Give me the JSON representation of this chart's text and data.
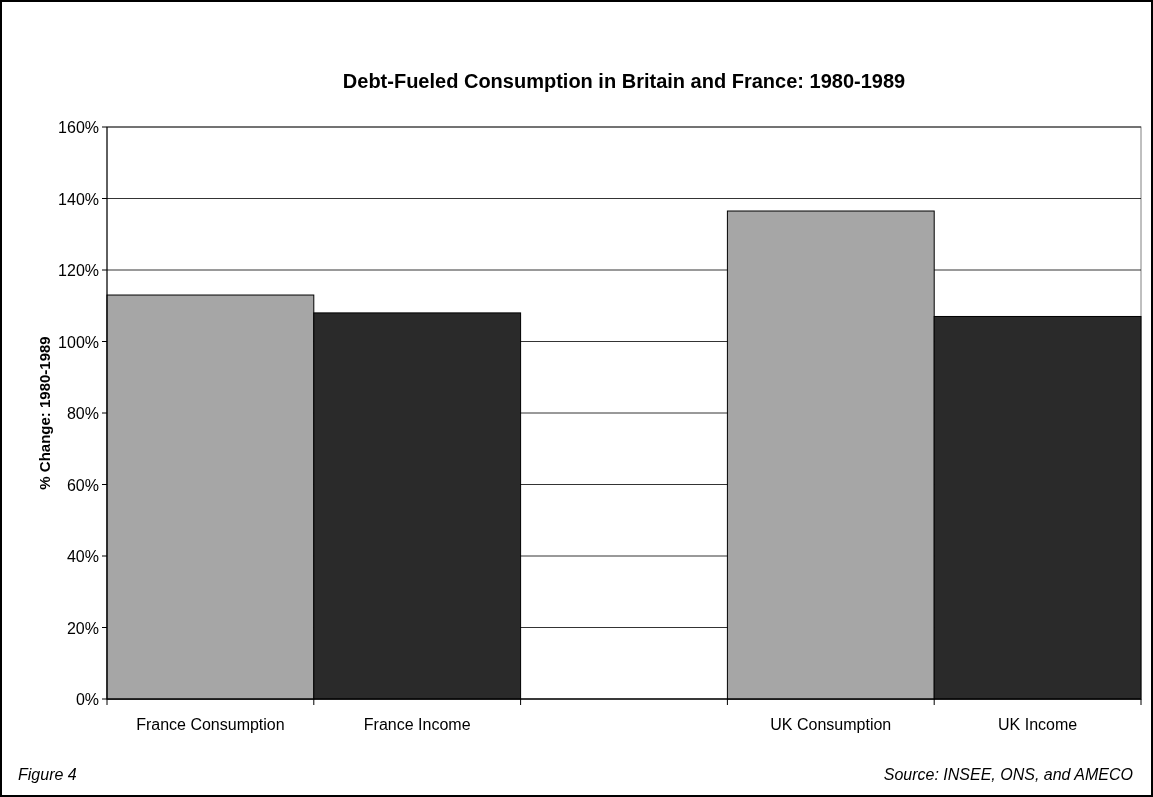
{
  "chart_data": {
    "type": "bar",
    "title": "Debt-Fueled Consumption in Britain and France: 1980-1989",
    "ylabel": "% Change: 1980-1989",
    "categories": [
      "France Consumption",
      "France Income",
      null,
      "UK Consumption",
      "UK Income"
    ],
    "values": [
      113,
      108,
      null,
      136.5,
      107
    ],
    "colors": [
      "#a6a6a6",
      "#2a2a2a",
      null,
      "#a6a6a6",
      "#2a2a2a"
    ],
    "ylim": [
      0,
      160
    ],
    "yticks": [
      {
        "value": 0,
        "label": "0%"
      },
      {
        "value": 20,
        "label": "20%"
      },
      {
        "value": 40,
        "label": "40%"
      },
      {
        "value": 60,
        "label": "60%"
      },
      {
        "value": 80,
        "label": "80%"
      },
      {
        "value": 100,
        "label": "100%"
      },
      {
        "value": 120,
        "label": "120%"
      },
      {
        "value": 140,
        "label": "140%"
      },
      {
        "value": 160,
        "label": "160%"
      }
    ],
    "grid": "y",
    "annotations": [
      "Figure 4",
      "Source: INSEE, ONS, and AMECO"
    ]
  }
}
